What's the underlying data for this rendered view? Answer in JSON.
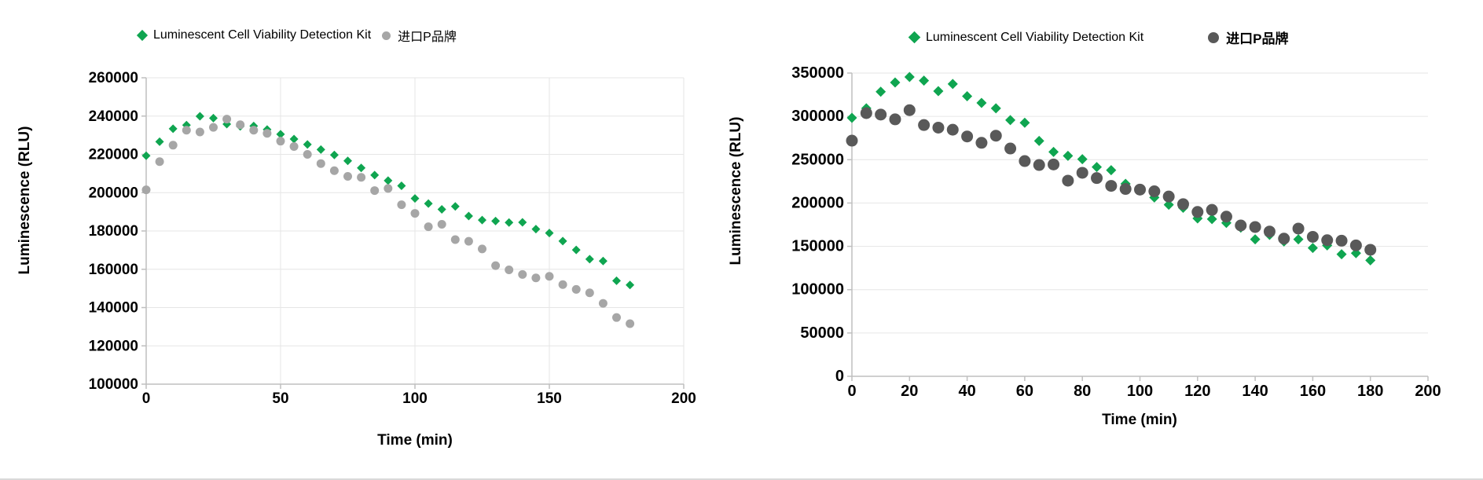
{
  "page": {
    "background": "#ffffff"
  },
  "colors": {
    "green": "#0FA550",
    "gray_light": "#A6A6A6",
    "gray_dark": "#595959",
    "grid": "#E6E6E6",
    "axis": "#BFBFBF",
    "tick_text": "#000000"
  },
  "chart_data": [
    {
      "type": "scatter",
      "title": "",
      "xlabel": "Time (min)",
      "ylabel": "Luminescence  (RLU)",
      "xlim": [
        0,
        200
      ],
      "ylim": [
        100000,
        260000
      ],
      "x_ticks": [
        0,
        50,
        100,
        150,
        200
      ],
      "y_ticks": [
        100000,
        120000,
        140000,
        160000,
        180000,
        200000,
        220000,
        240000,
        260000
      ],
      "grid": {
        "x": true,
        "y": true
      },
      "legend_position": "top",
      "x": [
        0,
        5,
        10,
        15,
        20,
        25,
        30,
        35,
        40,
        45,
        50,
        55,
        60,
        65,
        70,
        75,
        80,
        85,
        90,
        95,
        100,
        105,
        110,
        115,
        120,
        125,
        130,
        135,
        140,
        145,
        150,
        155,
        160,
        165,
        170,
        175,
        180
      ],
      "series": [
        {
          "name": "Luminescent Cell Viability Detection Kit",
          "marker": "diamond",
          "color": "#0FA550",
          "values": [
            219300,
            226600,
            233400,
            235300,
            239900,
            238900,
            235800,
            234600,
            234800,
            233000,
            230500,
            228000,
            225200,
            222500,
            219700,
            216600,
            212900,
            209200,
            206300,
            203600,
            197000,
            194300,
            191300,
            192800,
            187800,
            185700,
            185200,
            184400,
            184500,
            181000,
            178900,
            174700,
            170100,
            165300,
            164300,
            154000,
            151800
          ]
        },
        {
          "name": "进口P品牌",
          "marker": "circle",
          "color": "#A6A6A6",
          "values": [
            201500,
            216200,
            224800,
            232600,
            231700,
            234100,
            238400,
            235500,
            232600,
            231000,
            226900,
            224100,
            220000,
            215200,
            211500,
            208500,
            208000,
            201100,
            202200,
            193700,
            189200,
            182200,
            183500,
            175500,
            174600,
            170600,
            161900,
            159700,
            157300,
            155500,
            156300,
            152000,
            149500,
            147700,
            142200,
            134800,
            131600
          ]
        }
      ]
    },
    {
      "type": "scatter",
      "title": "",
      "xlabel": "Time  (min)",
      "ylabel": "Luminescence  (RLU)",
      "xlim": [
        0,
        200
      ],
      "ylim": [
        0,
        350000
      ],
      "x_ticks": [
        0,
        20,
        40,
        60,
        80,
        100,
        120,
        140,
        160,
        180,
        200
      ],
      "y_ticks": [
        0,
        50000,
        100000,
        150000,
        200000,
        250000,
        300000,
        350000
      ],
      "grid": {
        "x": false,
        "y": true
      },
      "legend_position": "top",
      "x": [
        0,
        5,
        10,
        15,
        20,
        25,
        30,
        35,
        40,
        45,
        50,
        55,
        60,
        65,
        70,
        75,
        80,
        85,
        90,
        95,
        100,
        105,
        110,
        115,
        120,
        125,
        130,
        135,
        140,
        145,
        150,
        155,
        160,
        165,
        170,
        175,
        180
      ],
      "series": [
        {
          "name": "Luminescent Cell Viability Detection Kit",
          "marker": "diamond",
          "color": "#0FA550",
          "values": [
            298300,
            309300,
            328500,
            339100,
            345500,
            341300,
            329200,
            337400,
            323300,
            315600,
            309300,
            295700,
            292700,
            271700,
            259000,
            254500,
            250600,
            241500,
            237900,
            222200,
            214500,
            206400,
            198000,
            194500,
            182200,
            181500,
            177000,
            171600,
            158100,
            163200,
            155600,
            158100,
            148100,
            151100,
            140900,
            142100,
            133900
          ]
        },
        {
          "name": "进口P品牌",
          "marker": "circle",
          "color": "#595959",
          "values": [
            272000,
            303800,
            302100,
            296600,
            307200,
            290000,
            287000,
            284600,
            276800,
            269500,
            277700,
            262900,
            248400,
            243900,
            244500,
            225800,
            234900,
            228800,
            219800,
            216200,
            215500,
            213500,
            207500,
            198700,
            189700,
            192100,
            184300,
            174100,
            172300,
            167100,
            158900,
            170500,
            161000,
            157100,
            156500,
            151100,
            146000
          ]
        }
      ]
    }
  ]
}
